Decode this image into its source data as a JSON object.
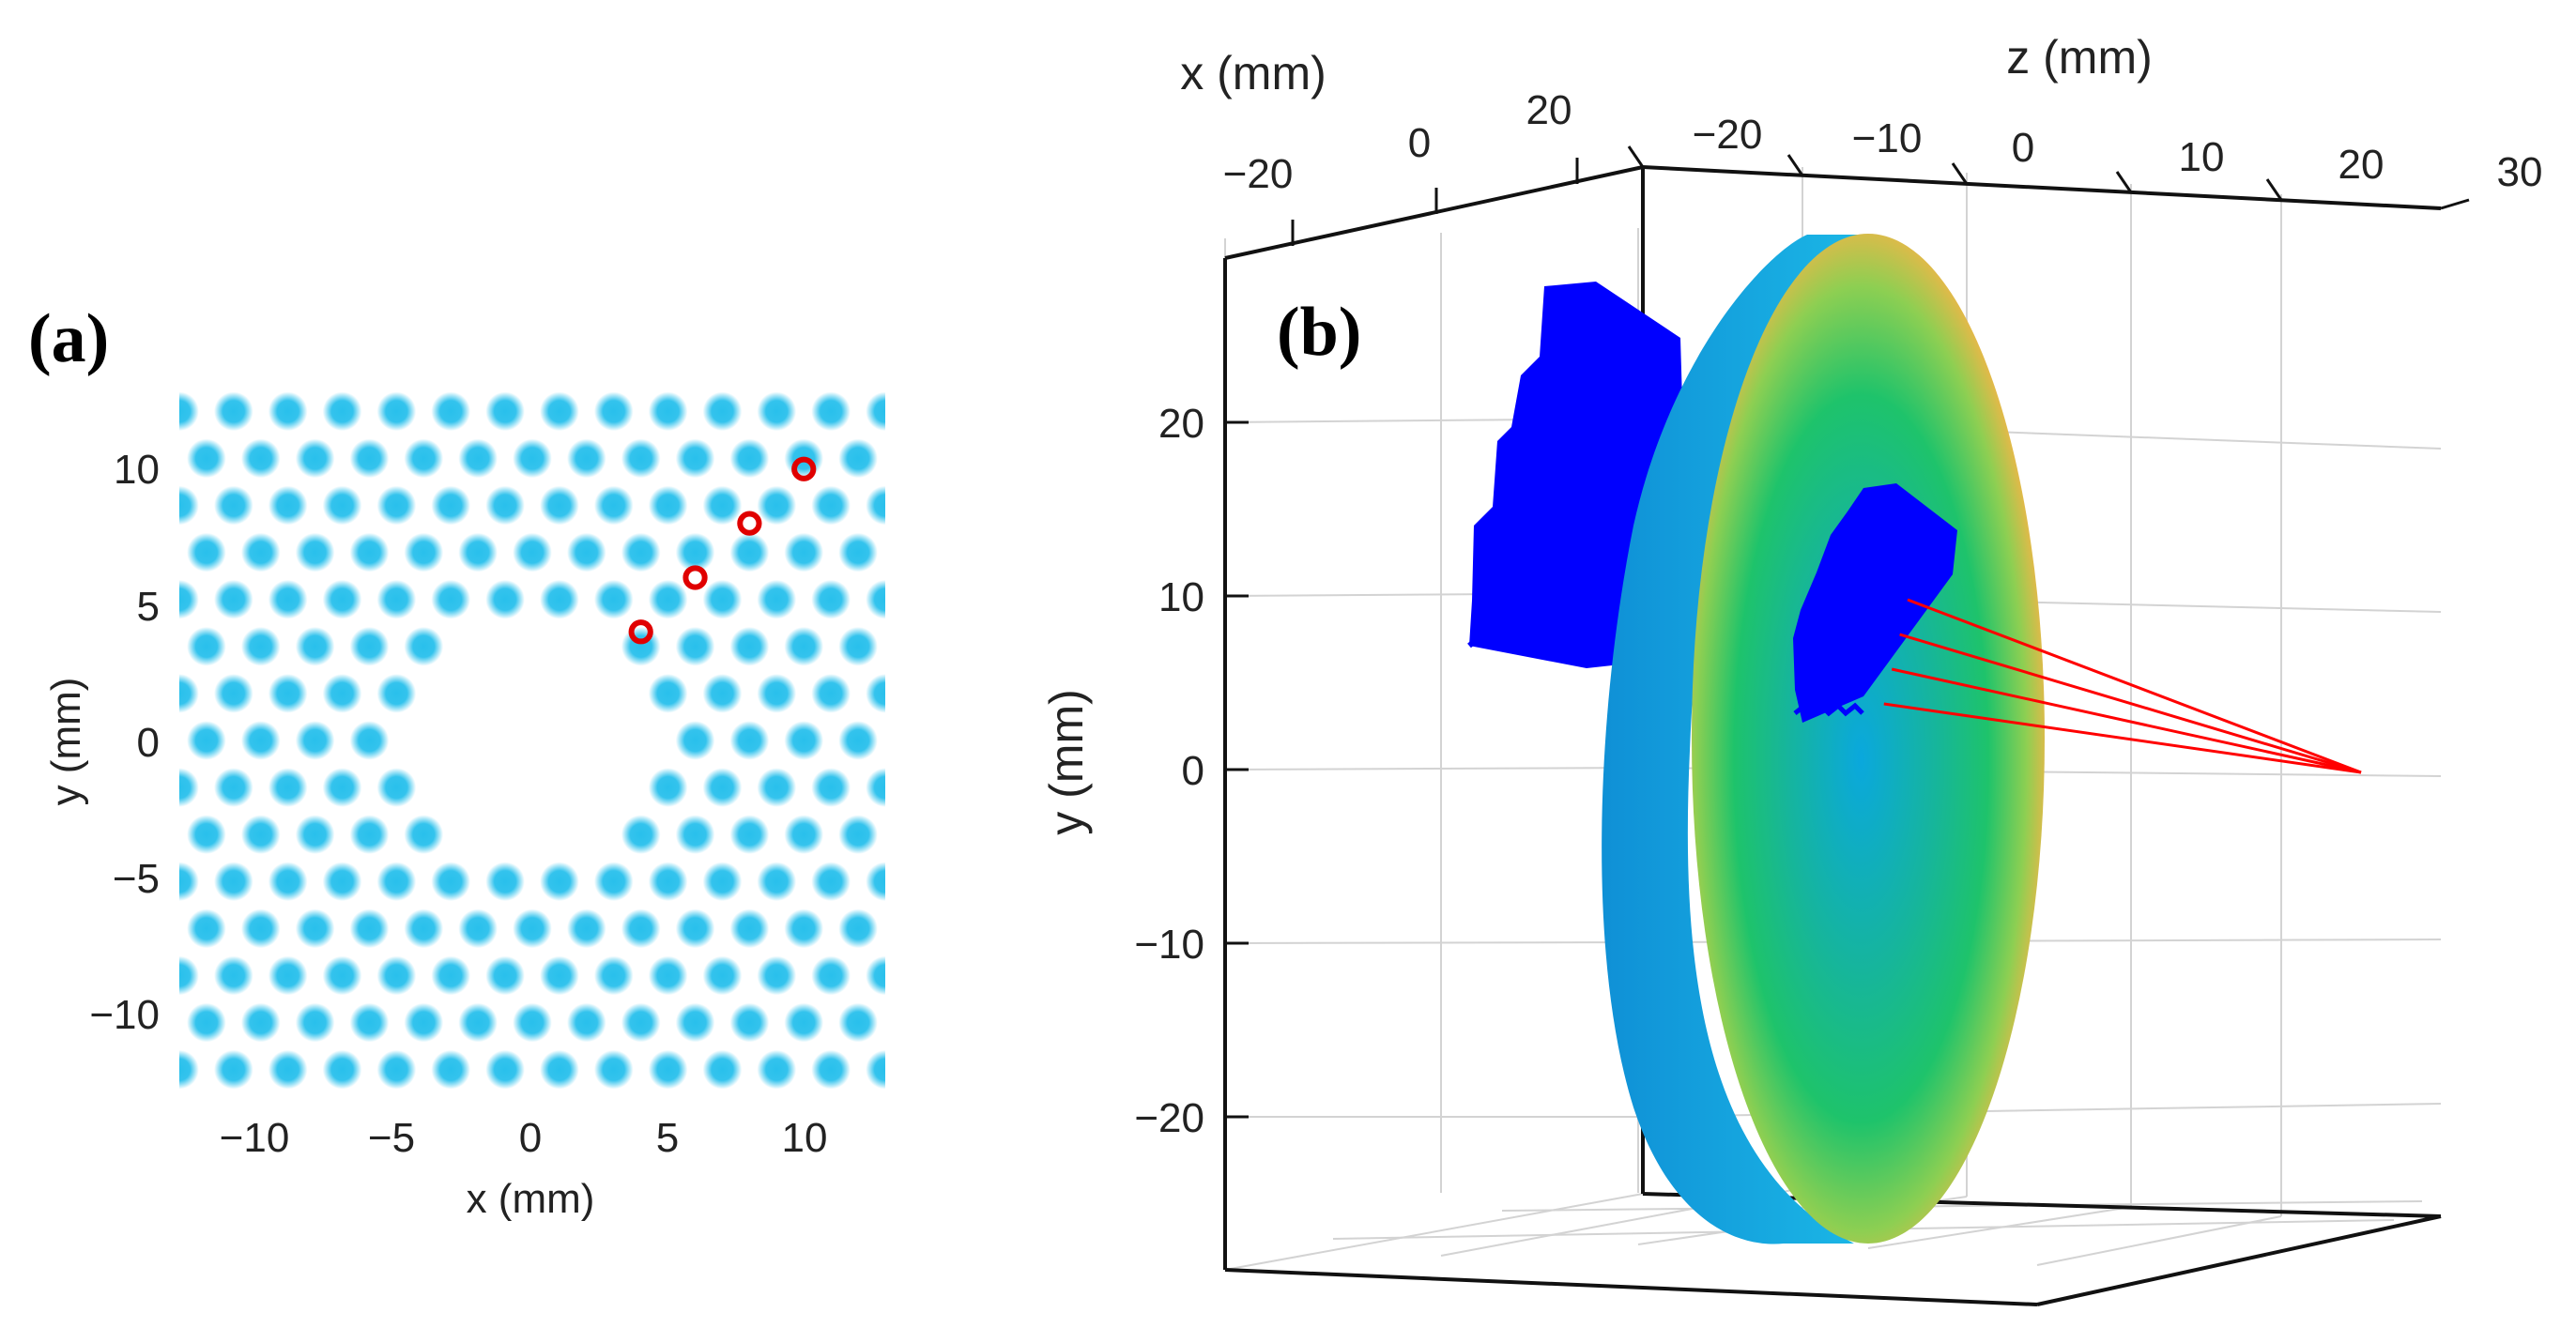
{
  "colors": {
    "dot": "#29c0ec",
    "marker": "#e00000",
    "arrows": "#0000ff",
    "rays": "#ff0000",
    "rim": "#1aa3dc",
    "lens_center": "#0aa8dd",
    "lens_mid": "#1ec36b",
    "lens_edge": "#ffe600"
  },
  "chart_data": [
    {
      "panel_label": "(a)",
      "type": "scatter",
      "description_series": "triangular lattice of circular beam spots with a central hexagonal vacancy; four highlighted spots",
      "xlabel": "x (mm)",
      "ylabel": "y (mm)",
      "xlim": [
        -13,
        13
      ],
      "ylim": [
        -13,
        13
      ],
      "xticks": [
        -10,
        -5,
        0,
        5,
        10
      ],
      "yticks": [
        -10,
        -5,
        0,
        5,
        10
      ],
      "xtick_labels": [
        "−10",
        "−5",
        "0",
        "5",
        "10"
      ],
      "ytick_labels": [
        "−10",
        "−5",
        "0",
        "5",
        "10"
      ],
      "lattice_pitch_mm": 2,
      "spot_radius_mm": 0.72,
      "vacancy_radius_mm": 4.2,
      "highlighted_points": [
        {
          "x": 4,
          "y": 4
        },
        {
          "x": 6,
          "y": 6
        },
        {
          "x": 8,
          "y": 8
        },
        {
          "x": 10,
          "y": 10
        }
      ]
    },
    {
      "panel_label": "(b)",
      "type": "3d-surface",
      "xlabel": "x (mm)",
      "ylabel": "y (mm)",
      "zlabel": "z (mm)",
      "x_ticks": [
        -20,
        0,
        20
      ],
      "x_tick_labels": [
        "−20",
        "0",
        "20"
      ],
      "y_ticks": [
        -20,
        -10,
        0,
        10,
        20
      ],
      "y_tick_labels": [
        "−20",
        "−10",
        "0",
        "10",
        "20"
      ],
      "z_ticks": [
        -20,
        -10,
        0,
        10,
        20,
        30
      ],
      "z_tick_labels": [
        "−20",
        "−10",
        "0",
        "10",
        "20",
        "30"
      ],
      "lens_radius_mm": 25,
      "focal_point_mm": {
        "x": 0,
        "y": 2,
        "z": 30
      },
      "ray_sources_mm": [
        {
          "x": 4,
          "y": 4,
          "z": 0
        },
        {
          "x": 6,
          "y": 6,
          "z": 0
        },
        {
          "x": 8,
          "y": 8,
          "z": 0
        },
        {
          "x": 10,
          "y": 10,
          "z": 0
        }
      ]
    }
  ]
}
